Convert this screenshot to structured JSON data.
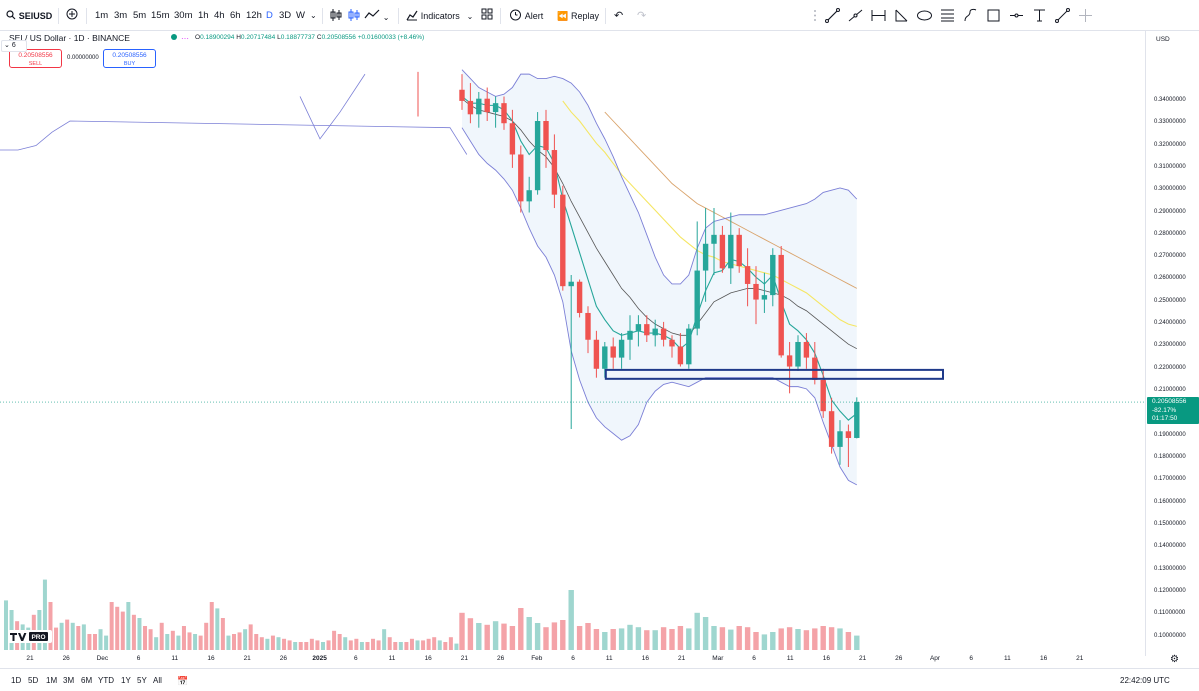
{
  "toolbar": {
    "symbol": "SEIUSD",
    "timeframes": [
      "1m",
      "3m",
      "5m",
      "15m",
      "30m",
      "1h",
      "4h",
      "6h",
      "12h",
      "D",
      "3D",
      "W"
    ],
    "active_timeframe": "D",
    "indicators_label": "Indicators",
    "alert_label": "Alert",
    "replay_label": "Replay"
  },
  "legend": {
    "title": "SEI / US Dollar · 1D · BINANCE",
    "open_key": "O",
    "open": "0.18900294",
    "high_key": "H",
    "high": "0.20717484",
    "low_key": "L",
    "low": "0.18877737",
    "close_key": "C",
    "close": "0.20508556",
    "change": "+0.01600033 (+8.46%)",
    "sell_price": "0.20508556",
    "sell_label": "SELL",
    "buy_price": "0.20508556",
    "buy_label": "BUY",
    "spread": "0.00000000",
    "indicator_count": "6"
  },
  "price_axis": {
    "currency": "USD",
    "last_price": "0.20508556",
    "last_change": "-82.17%",
    "countdown": "01:17:50"
  },
  "time_axis": {
    "labels": [
      "21",
      "26",
      "Dec",
      "6",
      "11",
      "16",
      "21",
      "26",
      "2025",
      "6",
      "11",
      "16",
      "21",
      "26",
      "Feb",
      "6",
      "11",
      "16",
      "21",
      "Mar",
      "6",
      "11",
      "16",
      "21",
      "26",
      "Apr",
      "6",
      "11",
      "16",
      "21"
    ]
  },
  "bottom": {
    "ranges": [
      "1D",
      "5D",
      "1M",
      "3M",
      "6M",
      "YTD",
      "1Y",
      "5Y",
      "All"
    ],
    "clock": "22:42:09 UTC"
  },
  "colors": {
    "up": "#26a69a",
    "down": "#ef5350",
    "up_volume": "#9fd6cf",
    "down_volume": "#f4a3a8",
    "bb": "#7b7fd6",
    "ema_short": "#26a69a",
    "ema_mid": "#555555",
    "ema_yellow": "#f5e663",
    "ema_orange": "#d9a36b",
    "zone": "#1f3a8a"
  },
  "icons": [
    "search-icon",
    "add-symbol-icon",
    "bar-style-icon",
    "chart-type-icon",
    "indicators-icon",
    "layout-icon",
    "alert-icon",
    "replay-icon",
    "undo-icon",
    "redo-icon",
    "trend-line-icon",
    "horizontal-ray-icon",
    "fib-icon",
    "shape-icon",
    "measure-icon",
    "settings-icon"
  ],
  "chart_data": {
    "type": "candlestick",
    "symbol": "SEI / US Dollar",
    "interval": "1D",
    "exchange": "BINANCE",
    "y_axis_ticks": [
      "0.34000000",
      "0.33000000",
      "0.32000000",
      "0.31000000",
      "0.30000000",
      "0.29000000",
      "0.28000000",
      "0.27000000",
      "0.26000000",
      "0.25000000",
      "0.24000000",
      "0.23000000",
      "0.22000000",
      "0.21000000",
      "0.20000000",
      "0.19000000",
      "0.18000000",
      "0.17000000",
      "0.16000000",
      "0.15000000",
      "0.14000000",
      "0.13000000",
      "0.12000000",
      "0.11000000",
      "0.10000000"
    ],
    "ylim": [
      0.0967,
      0.3534
    ],
    "x_start": "2025-01-18",
    "candles": [
      {
        "o": 0.345,
        "h": 0.352,
        "l": 0.336,
        "c": 0.34
      },
      {
        "o": 0.34,
        "h": 0.348,
        "l": 0.33,
        "c": 0.334
      },
      {
        "o": 0.334,
        "h": 0.344,
        "l": 0.328,
        "c": 0.341
      },
      {
        "o": 0.341,
        "h": 0.346,
        "l": 0.331,
        "c": 0.335
      },
      {
        "o": 0.335,
        "h": 0.342,
        "l": 0.328,
        "c": 0.339
      },
      {
        "o": 0.339,
        "h": 0.342,
        "l": 0.327,
        "c": 0.33
      },
      {
        "o": 0.33,
        "h": 0.336,
        "l": 0.31,
        "c": 0.316
      },
      {
        "o": 0.316,
        "h": 0.32,
        "l": 0.29,
        "c": 0.295
      },
      {
        "o": 0.295,
        "h": 0.306,
        "l": 0.29,
        "c": 0.3
      },
      {
        "o": 0.3,
        "h": 0.335,
        "l": 0.298,
        "c": 0.331
      },
      {
        "o": 0.331,
        "h": 0.336,
        "l": 0.31,
        "c": 0.318
      },
      {
        "o": 0.318,
        "h": 0.325,
        "l": 0.292,
        "c": 0.298
      },
      {
        "o": 0.298,
        "h": 0.302,
        "l": 0.255,
        "c": 0.257
      },
      {
        "o": 0.257,
        "h": 0.262,
        "l": 0.193,
        "c": 0.259
      },
      {
        "o": 0.259,
        "h": 0.26,
        "l": 0.243,
        "c": 0.245
      },
      {
        "o": 0.245,
        "h": 0.248,
        "l": 0.227,
        "c": 0.233
      },
      {
        "o": 0.233,
        "h": 0.237,
        "l": 0.216,
        "c": 0.22
      },
      {
        "o": 0.22,
        "h": 0.232,
        "l": 0.216,
        "c": 0.23
      },
      {
        "o": 0.23,
        "h": 0.234,
        "l": 0.22,
        "c": 0.225
      },
      {
        "o": 0.225,
        "h": 0.236,
        "l": 0.22,
        "c": 0.233
      },
      {
        "o": 0.233,
        "h": 0.244,
        "l": 0.224,
        "c": 0.237
      },
      {
        "o": 0.237,
        "h": 0.244,
        "l": 0.23,
        "c": 0.24
      },
      {
        "o": 0.24,
        "h": 0.244,
        "l": 0.232,
        "c": 0.235
      },
      {
        "o": 0.235,
        "h": 0.242,
        "l": 0.23,
        "c": 0.238
      },
      {
        "o": 0.238,
        "h": 0.241,
        "l": 0.23,
        "c": 0.233
      },
      {
        "o": 0.233,
        "h": 0.235,
        "l": 0.225,
        "c": 0.23
      },
      {
        "o": 0.23,
        "h": 0.236,
        "l": 0.221,
        "c": 0.222
      },
      {
        "o": 0.222,
        "h": 0.24,
        "l": 0.22,
        "c": 0.238
      },
      {
        "o": 0.238,
        "h": 0.286,
        "l": 0.235,
        "c": 0.264
      },
      {
        "o": 0.264,
        "h": 0.292,
        "l": 0.25,
        "c": 0.276
      },
      {
        "o": 0.276,
        "h": 0.292,
        "l": 0.262,
        "c": 0.28
      },
      {
        "o": 0.28,
        "h": 0.284,
        "l": 0.263,
        "c": 0.265
      },
      {
        "o": 0.265,
        "h": 0.29,
        "l": 0.258,
        "c": 0.28
      },
      {
        "o": 0.28,
        "h": 0.283,
        "l": 0.263,
        "c": 0.266
      },
      {
        "o": 0.266,
        "h": 0.274,
        "l": 0.248,
        "c": 0.258
      },
      {
        "o": 0.258,
        "h": 0.266,
        "l": 0.24,
        "c": 0.251
      },
      {
        "o": 0.251,
        "h": 0.263,
        "l": 0.245,
        "c": 0.253
      },
      {
        "o": 0.253,
        "h": 0.274,
        "l": 0.248,
        "c": 0.271
      },
      {
        "o": 0.271,
        "h": 0.275,
        "l": 0.225,
        "c": 0.226
      },
      {
        "o": 0.226,
        "h": 0.232,
        "l": 0.209,
        "c": 0.221
      },
      {
        "o": 0.221,
        "h": 0.235,
        "l": 0.219,
        "c": 0.232
      },
      {
        "o": 0.232,
        "h": 0.236,
        "l": 0.22,
        "c": 0.225
      },
      {
        "o": 0.225,
        "h": 0.232,
        "l": 0.213,
        "c": 0.215
      },
      {
        "o": 0.215,
        "h": 0.22,
        "l": 0.198,
        "c": 0.201
      },
      {
        "o": 0.201,
        "h": 0.207,
        "l": 0.182,
        "c": 0.185
      },
      {
        "o": 0.185,
        "h": 0.197,
        "l": 0.177,
        "c": 0.192
      },
      {
        "o": 0.192,
        "h": 0.195,
        "l": 0.176,
        "c": 0.189
      },
      {
        "o": 0.189,
        "h": 0.2072,
        "l": 0.1888,
        "c": 0.2051
      }
    ],
    "volume": [
      0.62,
      0.53,
      0.45,
      0.42,
      0.48,
      0.44,
      0.4,
      0.7,
      0.55,
      0.45,
      0.38,
      0.46,
      0.5,
      1.0,
      0.4,
      0.45,
      0.35,
      0.3,
      0.35,
      0.36,
      0.42,
      0.38,
      0.33,
      0.33,
      0.38,
      0.35,
      0.4,
      0.36,
      0.62,
      0.55,
      0.4,
      0.38,
      0.34,
      0.4,
      0.38,
      0.3,
      0.26,
      0.3,
      0.36,
      0.38,
      0.35,
      0.33,
      0.36,
      0.4,
      0.38,
      0.36,
      0.3,
      0.24
    ],
    "bollinger_upper": [
      0.354,
      0.35,
      0.346,
      0.344,
      0.342,
      0.343,
      0.346,
      0.352,
      0.352,
      0.35,
      0.35,
      0.351,
      0.35,
      0.348,
      0.344,
      0.338,
      0.33,
      0.323,
      0.315,
      0.306,
      0.298,
      0.29,
      0.28,
      0.27,
      0.262,
      0.258,
      0.258,
      0.262,
      0.274,
      0.283,
      0.286,
      0.287,
      0.288,
      0.289,
      0.289,
      0.289,
      0.289,
      0.29,
      0.291,
      0.292,
      0.293,
      0.294,
      0.296,
      0.299,
      0.3,
      0.301,
      0.3,
      0.296
    ],
    "bollinger_lower": [
      0.328,
      0.322,
      0.316,
      0.312,
      0.309,
      0.305,
      0.3,
      0.292,
      0.283,
      0.275,
      0.27,
      0.262,
      0.25,
      0.228,
      0.215,
      0.205,
      0.198,
      0.194,
      0.191,
      0.188,
      0.19,
      0.195,
      0.205,
      0.21,
      0.213,
      0.214,
      0.213,
      0.212,
      0.214,
      0.216,
      0.216,
      0.216,
      0.216,
      0.216,
      0.216,
      0.216,
      0.216,
      0.216,
      0.214,
      0.212,
      0.212,
      0.211,
      0.207,
      0.196,
      0.186,
      0.176,
      0.17,
      0.168
    ],
    "bollinger_mid": [
      0.341,
      0.338,
      0.336,
      0.335,
      0.334,
      0.333,
      0.331,
      0.327,
      0.322,
      0.318,
      0.315,
      0.31,
      0.303,
      0.295,
      0.288,
      0.281,
      0.274,
      0.268,
      0.262,
      0.256,
      0.252,
      0.247,
      0.243,
      0.24,
      0.238,
      0.236,
      0.235,
      0.235,
      0.24,
      0.245,
      0.25,
      0.252,
      0.254,
      0.255,
      0.256,
      0.256,
      0.255,
      0.254,
      0.253,
      0.251,
      0.248,
      0.246,
      0.243,
      0.24,
      0.237,
      0.234,
      0.231,
      0.229
    ],
    "ema_short": [
      0.342,
      0.339,
      0.339,
      0.338,
      0.338,
      0.336,
      0.331,
      0.322,
      0.316,
      0.32,
      0.319,
      0.312,
      0.296,
      0.284,
      0.272,
      0.26,
      0.248,
      0.242,
      0.237,
      0.235,
      0.236,
      0.237,
      0.236,
      0.236,
      0.235,
      0.233,
      0.229,
      0.232,
      0.244,
      0.255,
      0.263,
      0.264,
      0.269,
      0.268,
      0.265,
      0.261,
      0.258,
      0.262,
      0.25,
      0.24,
      0.237,
      0.233,
      0.227,
      0.217,
      0.206,
      0.201,
      0.197,
      0.2
    ],
    "ema_yellow": [
      null,
      null,
      null,
      null,
      null,
      null,
      null,
      null,
      null,
      null,
      null,
      null,
      0.34,
      0.335,
      0.331,
      0.326,
      0.321,
      0.317,
      0.312,
      0.307,
      0.303,
      0.299,
      0.295,
      0.291,
      0.287,
      0.283,
      0.279,
      0.276,
      0.273,
      0.271,
      0.27,
      0.268,
      0.267,
      0.266,
      0.265,
      0.264,
      0.263,
      0.262,
      0.26,
      0.258,
      0.256,
      0.254,
      0.251,
      0.248,
      0.245,
      0.242,
      0.24,
      0.239
    ],
    "ema_orange": [
      null,
      null,
      null,
      null,
      null,
      null,
      null,
      null,
      null,
      null,
      null,
      null,
      null,
      null,
      null,
      null,
      null,
      0.335,
      0.331,
      0.327,
      0.323,
      0.319,
      0.315,
      0.311,
      0.307,
      0.303,
      0.3,
      0.297,
      0.294,
      0.292,
      0.29,
      0.288,
      0.286,
      0.284,
      0.282,
      0.28,
      0.278,
      0.276,
      0.274,
      0.272,
      0.27,
      0.268,
      0.266,
      0.264,
      0.262,
      0.26,
      0.258,
      0.256
    ],
    "zone": {
      "top": 0.2195,
      "bottom": 0.2155,
      "from_index": 17,
      "to": "right-edge"
    },
    "pre_history_bollinger_upper": [
      0.311,
      0.316,
      0.323,
      0.332,
      0.342
    ],
    "pre_history_bollinger_lower": [
      0.318,
      0.318,
      0.32,
      0.326,
      0.331
    ]
  }
}
